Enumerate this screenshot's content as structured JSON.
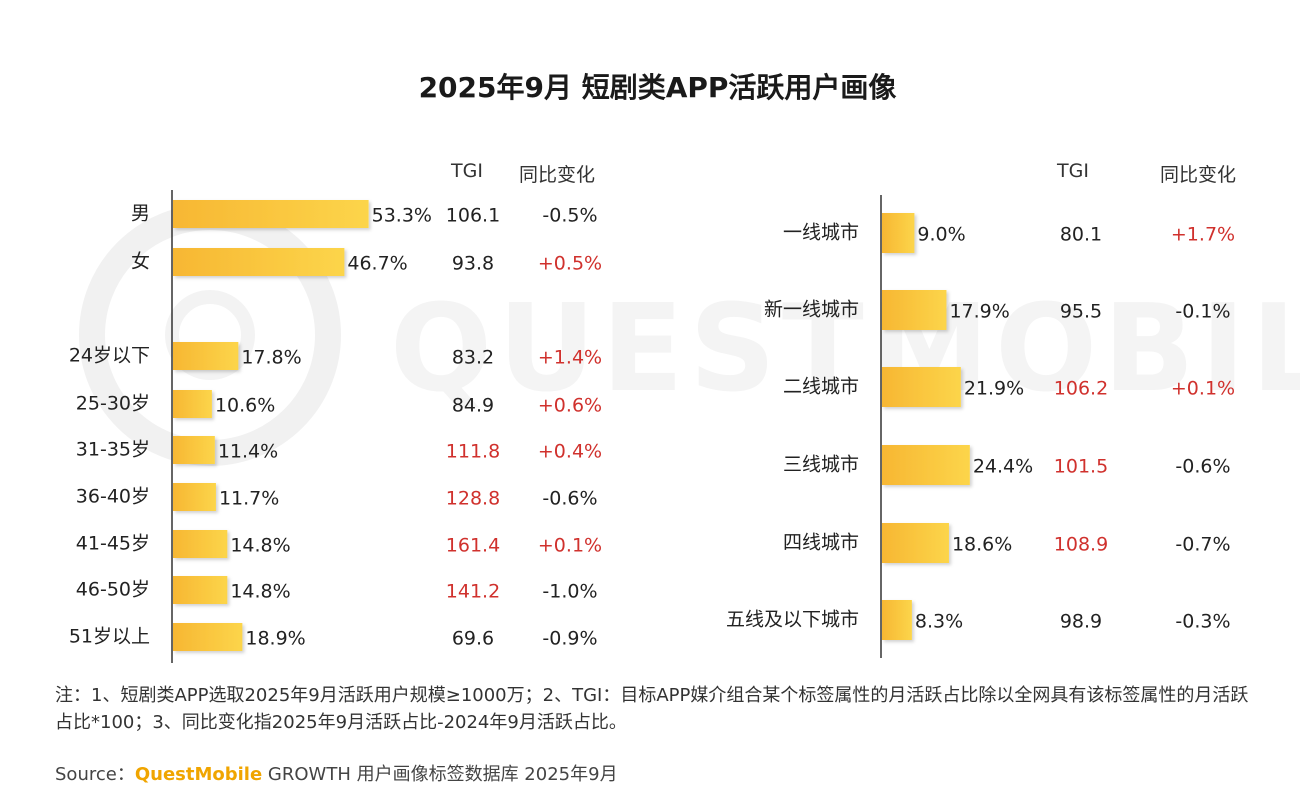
{
  "title": "2025年9月 短剧类APP活跃用户画像",
  "headers": {
    "tgi": "TGI",
    "yoy": "同比变化"
  },
  "watermark": "QUESTMOBILE",
  "colors": {
    "bar_start": "#f7b733",
    "bar_end": "#fcd54a",
    "red": "#d0312d",
    "text": "#222222",
    "axis": "#333333"
  },
  "chart_data": [
    {
      "type": "bar",
      "orientation": "horizontal",
      "categories": [
        "男",
        "女",
        "24岁以下",
        "25-30岁",
        "31-35岁",
        "36-40岁",
        "41-45岁",
        "46-50岁",
        "51岁以上"
      ],
      "groups": [
        [
          "男",
          "女"
        ],
        [
          "24岁以下",
          "25-30岁",
          "31-35岁",
          "36-40岁",
          "41-45岁",
          "46-50岁",
          "51岁以上"
        ]
      ],
      "values": [
        53.3,
        46.7,
        17.8,
        10.6,
        11.4,
        11.7,
        14.8,
        14.8,
        18.9
      ],
      "value_labels": [
        "53.3%",
        "46.7%",
        "17.8%",
        "10.6%",
        "11.4%",
        "11.7%",
        "14.8%",
        "14.8%",
        "18.9%"
      ],
      "tgi": [
        "106.1",
        "93.8",
        "83.2",
        "84.9",
        "111.8",
        "128.8",
        "161.4",
        "141.2",
        "69.6"
      ],
      "tgi_highlight": [
        false,
        false,
        false,
        false,
        true,
        true,
        true,
        true,
        false
      ],
      "yoy": [
        "-0.5%",
        "+0.5%",
        "+1.4%",
        "+0.6%",
        "+0.4%",
        "-0.6%",
        "+0.1%",
        "-1.0%",
        "-0.9%"
      ],
      "yoy_highlight": [
        false,
        true,
        true,
        true,
        true,
        false,
        true,
        false,
        false
      ]
    },
    {
      "type": "bar",
      "orientation": "horizontal",
      "categories": [
        "一线城市",
        "新一线城市",
        "二线城市",
        "三线城市",
        "四线城市",
        "五线及以下城市"
      ],
      "values": [
        9.0,
        17.9,
        21.9,
        24.4,
        18.6,
        8.3
      ],
      "value_labels": [
        "9.0%",
        "17.9%",
        "21.9%",
        "24.4%",
        "18.6%",
        "8.3%"
      ],
      "tgi": [
        "80.1",
        "95.5",
        "106.2",
        "101.5",
        "108.9",
        "98.9"
      ],
      "tgi_highlight": [
        false,
        false,
        true,
        true,
        true,
        false
      ],
      "yoy": [
        "+1.7%",
        "-0.1%",
        "+0.1%",
        "-0.6%",
        "-0.7%",
        "-0.3%"
      ],
      "yoy_highlight": [
        true,
        false,
        true,
        false,
        false,
        false
      ]
    }
  ],
  "note": "注：1、短剧类APP选取2025年9月活跃用户规模≥1000万；2、TGI：目标APP媒介组合某个标签属性的月活跃占比除以全网具有该标签属性的月活跃占比*100；3、同比变化指2025年9月活跃占比-2024年9月活跃占比。",
  "source": {
    "label": "Source：",
    "brand": "QuestMobile",
    "rest": " GROWTH 用户画像标签数据库 2025年9月"
  }
}
